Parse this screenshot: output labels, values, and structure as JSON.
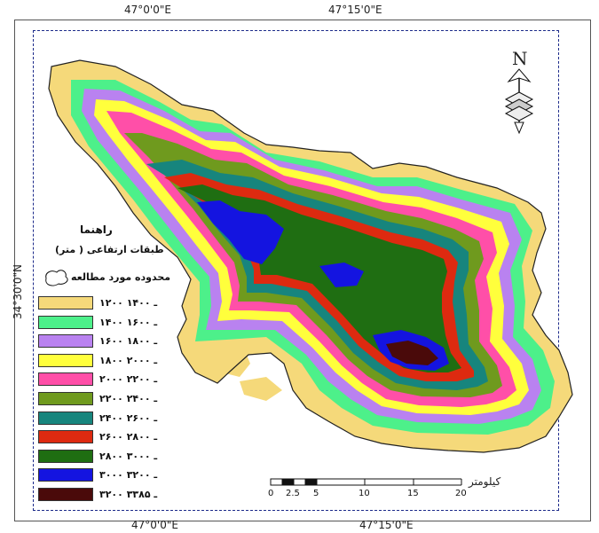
{
  "coordinates": {
    "top": [
      "47°0'0\"E",
      "47°15'0\"E"
    ],
    "bottom": [
      "47°0'0\"E",
      "47°15'0\"E"
    ],
    "left": "34°30'0\"N"
  },
  "north_arrow": {
    "letter": "N",
    "icon": "north-arrow-icon"
  },
  "legend": {
    "title": "راهنما",
    "subtitle": "طبقات ارتفاعی ( متر)",
    "boundary_label": "محدوده مورد مطالعه",
    "classes": [
      {
        "label": "۱۲۰۰ ـ ۱۴۰۰",
        "color": "#f5d97a"
      },
      {
        "label": "۱۴۰۰ ـ ۱۶۰۰",
        "color": "#4df08a"
      },
      {
        "label": "۱۶۰۰ ـ ۱۸۰۰",
        "color": "#b982f0"
      },
      {
        "label": "۱۸۰۰ ـ ۲۰۰۰",
        "color": "#ffff3c"
      },
      {
        "label": "۲۰۰۰ ـ ۲۲۰۰",
        "color": "#ff4fa8"
      },
      {
        "label": "۲۲۰۰ ـ ۲۴۰۰",
        "color": "#6f9a1e"
      },
      {
        "label": "۲۴۰۰ ـ ۲۶۰۰",
        "color": "#17857d"
      },
      {
        "label": "۲۶۰۰ ـ ۲۸۰۰",
        "color": "#dd2a10"
      },
      {
        "label": "۲۸۰۰ ـ ۳۰۰۰",
        "color": "#1f6e12"
      },
      {
        "label": "۳۰۰۰ ـ ۳۲۰۰",
        "color": "#1414e0"
      },
      {
        "label": "۳۲۰۰ ـ ۳۳۸۵",
        "color": "#4a0a0a"
      }
    ]
  },
  "scale_bar": {
    "unit": "کیلومتر",
    "ticks": [
      "0",
      "2.5",
      "5",
      "10",
      "15",
      "20"
    ]
  }
}
